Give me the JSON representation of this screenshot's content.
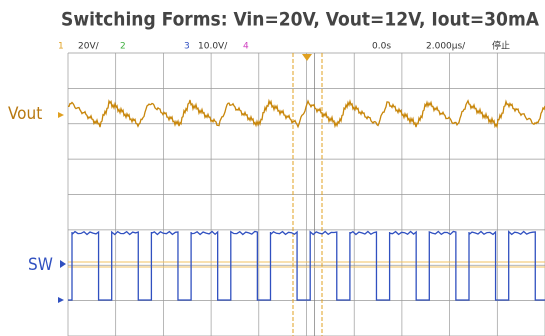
{
  "header": {
    "title": "Switching Forms: Vin=20V, Vout=12V, Iout=30mA"
  },
  "status_bar": {
    "ch1_number": "1",
    "ch1_scale": "20V/",
    "ch2_number": "2",
    "ch3_number": "3",
    "ch3_scale": "10.0V/",
    "ch4_number": "4",
    "time_offset": "0.0s",
    "time_scale": "2.000μs/",
    "run_state": "停止"
  },
  "traces": {
    "upper_label": "Vout",
    "lower_label": "SW"
  }
}
